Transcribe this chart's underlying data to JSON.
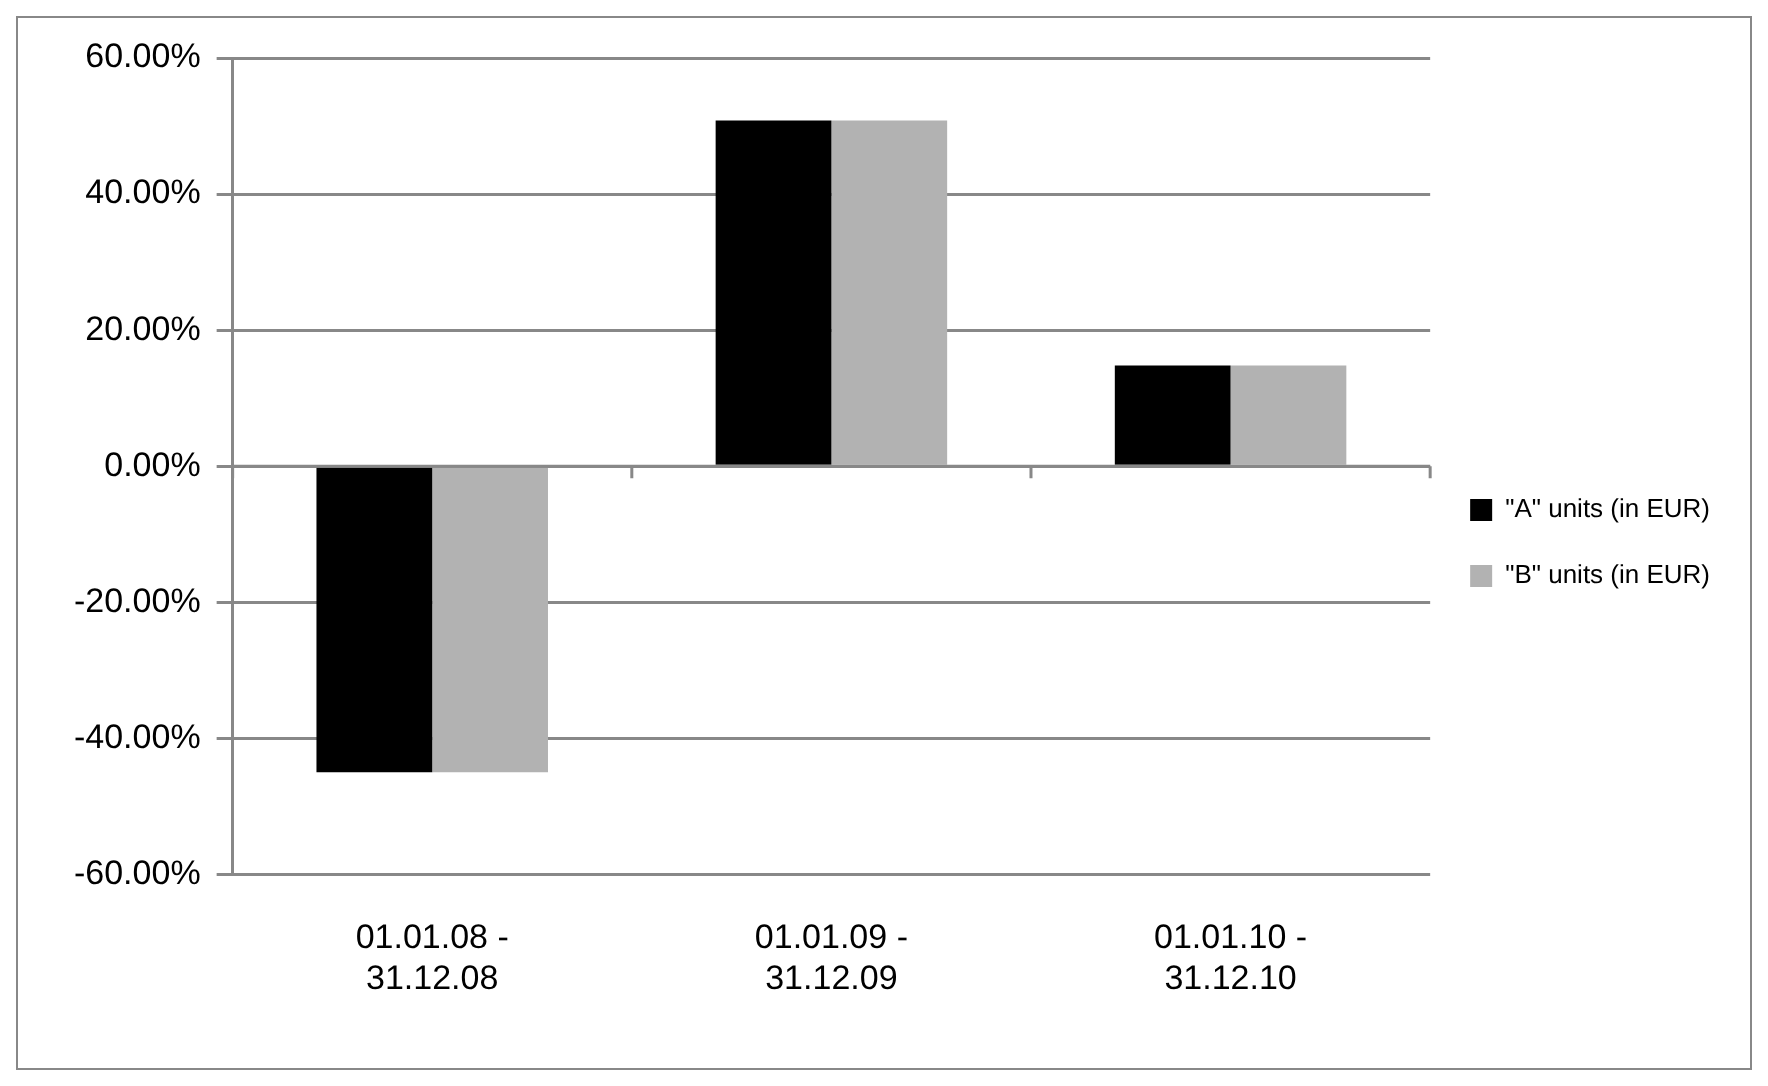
{
  "chart_data": {
    "type": "bar",
    "categories": [
      "01.01.08 - 31.12.08",
      "01.01.09 - 31.12.09",
      "01.01.10 - 31.12.10"
    ],
    "series": [
      {
        "name": "\"A\" units (in EUR)",
        "color": "#000000",
        "values": [
          -45.0,
          50.8,
          14.8
        ]
      },
      {
        "name": "\"B\" units (in EUR)",
        "color": "#b2b2b2",
        "values": [
          -45.0,
          50.8,
          14.8
        ]
      }
    ],
    "ylim": [
      -60,
      60
    ],
    "yticks": [
      {
        "value": -60,
        "label": "-60.00%"
      },
      {
        "value": -40,
        "label": "-40.00%"
      },
      {
        "value": -20,
        "label": "-20.00%"
      },
      {
        "value": 0,
        "label": "0.00%"
      },
      {
        "value": 20,
        "label": "20.00%"
      },
      {
        "value": 40,
        "label": "40.00%"
      },
      {
        "value": 60,
        "label": "60.00%"
      }
    ],
    "grid": "y",
    "legend": "right"
  }
}
